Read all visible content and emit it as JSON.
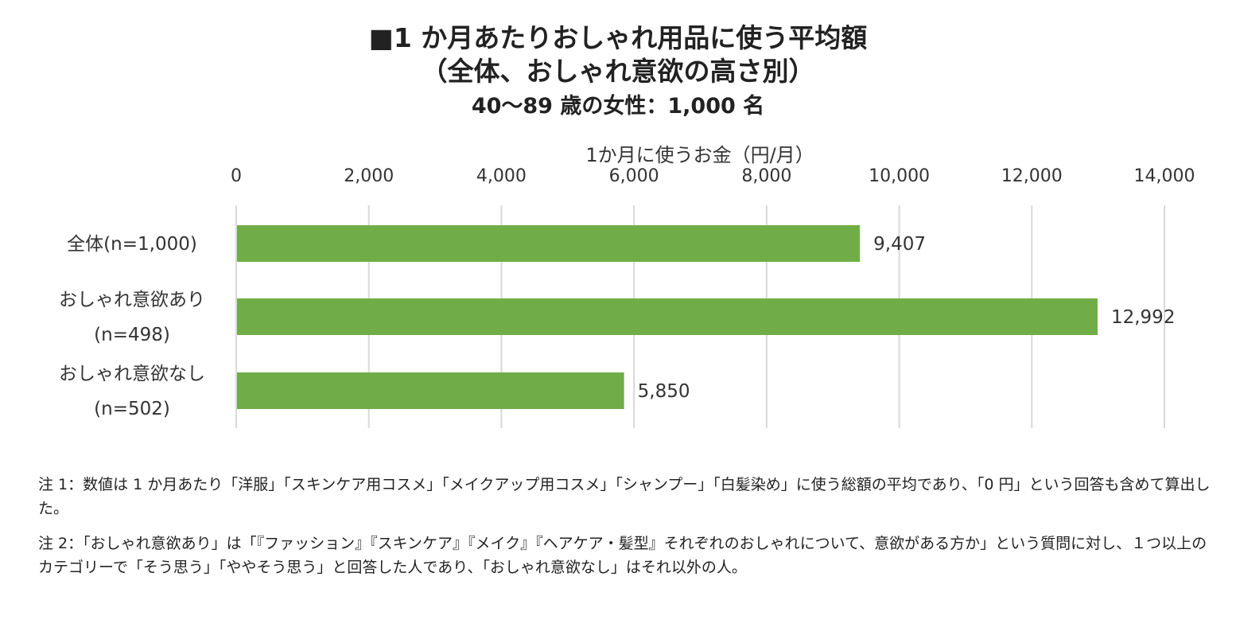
{
  "chart_data": {
    "type": "bar",
    "orientation": "horizontal",
    "title_lines": [
      "■1 か月あたりおしゃれ用品に使う平均額",
      "（全体、おしゃれ意欲の高さ別）"
    ],
    "subtitle": "40〜89 歳の女性：1,000 名",
    "xlabel": "1か月に使うお金（円/月）",
    "xlim": [
      0,
      14000
    ],
    "xticks": [
      "0",
      "2,000",
      "4,000",
      "6,000",
      "8,000",
      "10,000",
      "12,000",
      "14,000"
    ],
    "categories": [
      [
        "全体(n=1,000)"
      ],
      [
        "おしゃれ意欲あり",
        "(n=498)"
      ],
      [
        "おしゃれ意欲なし",
        "(n=502)"
      ]
    ],
    "values": [
      9407,
      12992,
      5850
    ],
    "value_labels": [
      "9,407",
      "12,992",
      "5,850"
    ],
    "bar_color": "#70ad47",
    "grid": true,
    "axis_position": "top"
  },
  "notes": [
    "注 1：数値は 1 か月あたり「洋服」「スキンケア用コスメ」「メイクアップ用コスメ」「シャンプー」「白髪染め」に使う総額の平均であり、「0 円」という回答も含めて算出した。",
    "注 2：「おしゃれ意欲あり」は「『ファッション』『スキンケア』『メイク』『ヘアケア・髪型』それぞれのおしゃれについて、意欲がある方か」という質問に対し、１つ以上のカテゴリーで「そう思う」「ややそう思う」と回答した人であり、「おしゃれ意欲なし」はそれ以外の人。"
  ]
}
